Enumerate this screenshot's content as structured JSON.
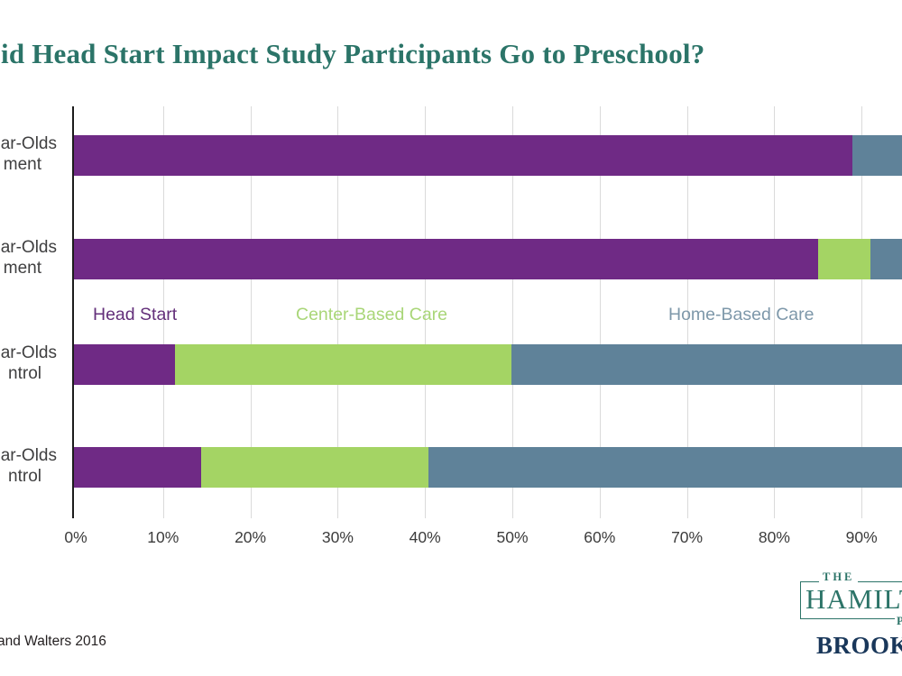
{
  "title": "id Head Start Impact Study Participants Go to Preschool?",
  "title_color": "#2b7468",
  "source_note": "and Walters 2016",
  "x_axis": {
    "ticks": [
      "0%",
      "10%",
      "20%",
      "30%",
      "40%",
      "50%",
      "60%",
      "70%",
      "80%",
      "90%"
    ]
  },
  "legend": [
    {
      "label": "Head Start",
      "color": "#632f7a"
    },
    {
      "label": "Center-Based Care",
      "color": "#a9d678"
    },
    {
      "label": "Home-Based Care",
      "color": "#7e98aa"
    }
  ],
  "rows": [
    {
      "label_line1": "ear-Olds",
      "label_line2": "ment"
    },
    {
      "label_line1": "ear-Olds",
      "label_line2": "ment"
    },
    {
      "label_line1": "ear-Olds",
      "label_line2": "ntrol"
    },
    {
      "label_line1": "ear-Olds",
      "label_line2": "ntrol"
    }
  ],
  "chart_data": {
    "type": "bar",
    "orientation": "horizontal",
    "stacked": true,
    "title": "id Head Start Impact Study Participants Go to Preschool?",
    "categories": [
      "ear-Olds / ment",
      "ear-Olds / ment",
      "ear-Olds / ntrol",
      "ear-Olds / ntrol"
    ],
    "series": [
      {
        "name": "Head Start",
        "color": "#6f2a85",
        "values": [
          89,
          85,
          11.5,
          14.5
        ]
      },
      {
        "name": "Center-Based Care",
        "color": "#a4d464",
        "values": [
          0,
          6,
          38.5,
          26
        ]
      },
      {
        "name": "Home-Based Care",
        "color": "#5f8299",
        "values": [
          11,
          9,
          50,
          59.5
        ]
      }
    ],
    "xlabel": "",
    "ylabel": "",
    "xlim": [
      0,
      100
    ],
    "x_tick_labels": [
      "0%",
      "10%",
      "20%",
      "30%",
      "40%",
      "50%",
      "60%",
      "70%",
      "80%",
      "90%"
    ],
    "grid": true,
    "legend_position": "inline-between-rows",
    "note": "right edge of figure (100% tick) cropped out of frame"
  },
  "logo": {
    "the": "THE",
    "hamilton": "HAMILTON",
    "project": "PROJECT",
    "brookings": "BROOKINGS"
  }
}
